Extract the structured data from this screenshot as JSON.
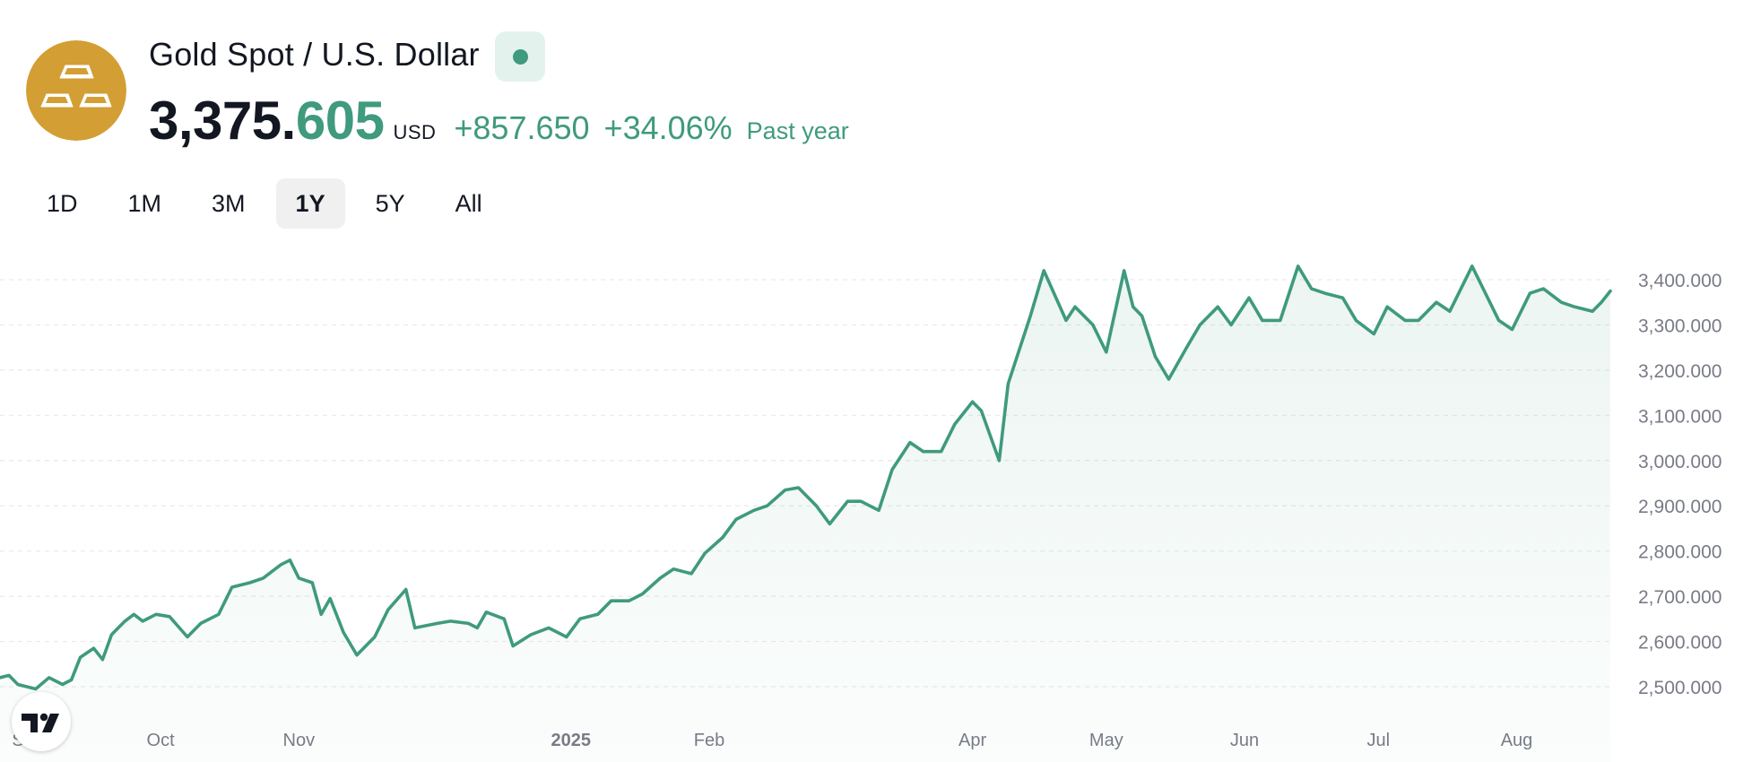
{
  "header": {
    "title": "Gold Spot / U.S. Dollar",
    "price_int": "3,375.",
    "price_frac": "605",
    "currency": "USD",
    "change": "+857.650",
    "change_pct": "+34.06%",
    "period": "Past year",
    "logo_icon": "gold-bars-icon",
    "status_icon": "market-open-dot-icon"
  },
  "range_tabs": [
    {
      "label": "1D",
      "active": false
    },
    {
      "label": "1M",
      "active": false
    },
    {
      "label": "3M",
      "active": false
    },
    {
      "label": "1Y",
      "active": true
    },
    {
      "label": "5Y",
      "active": false
    },
    {
      "label": "All",
      "active": false
    }
  ],
  "colors": {
    "line": "#3f9a7e",
    "logo": "#d39e33",
    "text": "#131722",
    "axis_text": "#787b86"
  },
  "badge": {
    "icon": "tradingview-logo-icon"
  },
  "chart_data": {
    "type": "area",
    "title": "",
    "xlabel": "",
    "ylabel": "",
    "ylim": [
      2480,
      3450
    ],
    "y_ticks": [
      "3,400.000",
      "3,300.000",
      "3,200.000",
      "3,100.000",
      "3,000.000",
      "2,900.000",
      "2,800.000",
      "2,700.000",
      "2,600.000",
      "2,500.000"
    ],
    "y_tick_values": [
      3400,
      3300,
      3200,
      3100,
      3000,
      2900,
      2800,
      2700,
      2600,
      2500
    ],
    "x_ticks": [
      {
        "label": "S",
        "date": "2024-08-26",
        "bold": false
      },
      {
        "label": "Oct",
        "date": "2024-10-01",
        "bold": false
      },
      {
        "label": "Nov",
        "date": "2024-11-01",
        "bold": false
      },
      {
        "label": "2025",
        "date": "2025-01-01",
        "bold": true
      },
      {
        "label": "Feb",
        "date": "2025-02-01",
        "bold": false
      },
      {
        "label": "Apr",
        "date": "2025-04-01",
        "bold": false
      },
      {
        "label": "May",
        "date": "2025-05-01",
        "bold": false
      },
      {
        "label": "Jun",
        "date": "2025-06-01",
        "bold": false
      },
      {
        "label": "Jul",
        "date": "2025-07-01",
        "bold": false
      },
      {
        "label": "Aug",
        "date": "2025-08-01",
        "bold": false
      }
    ],
    "x_range": [
      "2024-08-26",
      "2025-08-22"
    ],
    "grid": true,
    "legend": "none",
    "series": [
      {
        "x": [
          "2024-08-26",
          "2024-08-28",
          "2024-08-30",
          "2024-09-03",
          "2024-09-06",
          "2024-09-09",
          "2024-09-11",
          "2024-09-13",
          "2024-09-16",
          "2024-09-18",
          "2024-09-20",
          "2024-09-23",
          "2024-09-25",
          "2024-09-27",
          "2024-09-30",
          "2024-10-03",
          "2024-10-07",
          "2024-10-10",
          "2024-10-14",
          "2024-10-17",
          "2024-10-21",
          "2024-10-24",
          "2024-10-28",
          "2024-10-30",
          "2024-11-01",
          "2024-11-04",
          "2024-11-06",
          "2024-11-08",
          "2024-11-11",
          "2024-11-14",
          "2024-11-18",
          "2024-11-21",
          "2024-11-25",
          "2024-11-27",
          "2024-12-02",
          "2024-12-05",
          "2024-12-09",
          "2024-12-11",
          "2024-12-13",
          "2024-12-17",
          "2024-12-19",
          "2024-12-23",
          "2024-12-27",
          "2024-12-31",
          "2025-01-03",
          "2025-01-07",
          "2025-01-10",
          "2025-01-14",
          "2025-01-17",
          "2025-01-21",
          "2025-01-24",
          "2025-01-28",
          "2025-01-31",
          "2025-02-04",
          "2025-02-07",
          "2025-02-11",
          "2025-02-14",
          "2025-02-18",
          "2025-02-21",
          "2025-02-25",
          "2025-02-28",
          "2025-03-04",
          "2025-03-07",
          "2025-03-11",
          "2025-03-14",
          "2025-03-18",
          "2025-03-21",
          "2025-03-25",
          "2025-03-28",
          "2025-04-01",
          "2025-04-03",
          "2025-04-07",
          "2025-04-09",
          "2025-04-11",
          "2025-04-14",
          "2025-04-17",
          "2025-04-22",
          "2025-04-24",
          "2025-04-28",
          "2025-05-01",
          "2025-05-05",
          "2025-05-07",
          "2025-05-09",
          "2025-05-12",
          "2025-05-15",
          "2025-05-19",
          "2025-05-22",
          "2025-05-26",
          "2025-05-29",
          "2025-06-02",
          "2025-06-05",
          "2025-06-09",
          "2025-06-13",
          "2025-06-16",
          "2025-06-19",
          "2025-06-23",
          "2025-06-26",
          "2025-06-30",
          "2025-07-03",
          "2025-07-07",
          "2025-07-10",
          "2025-07-14",
          "2025-07-17",
          "2025-07-22",
          "2025-07-24",
          "2025-07-28",
          "2025-07-31",
          "2025-08-04",
          "2025-08-07",
          "2025-08-11",
          "2025-08-14",
          "2025-08-18",
          "2025-08-20",
          "2025-08-22"
        ],
        "values": [
          2520,
          2525,
          2505,
          2495,
          2520,
          2505,
          2515,
          2565,
          2585,
          2560,
          2615,
          2645,
          2660,
          2645,
          2660,
          2655,
          2610,
          2640,
          2660,
          2720,
          2730,
          2740,
          2770,
          2780,
          2740,
          2730,
          2660,
          2695,
          2620,
          2570,
          2610,
          2670,
          2715,
          2630,
          2640,
          2645,
          2640,
          2630,
          2665,
          2650,
          2590,
          2615,
          2630,
          2610,
          2650,
          2660,
          2690,
          2690,
          2705,
          2740,
          2760,
          2750,
          2795,
          2830,
          2870,
          2890,
          2900,
          2935,
          2940,
          2900,
          2860,
          2910,
          2910,
          2890,
          2980,
          3040,
          3020,
          3020,
          3080,
          3130,
          3110,
          3000,
          3170,
          3230,
          3320,
          3420,
          3310,
          3340,
          3300,
          3240,
          3420,
          3340,
          3320,
          3230,
          3180,
          3250,
          3300,
          3340,
          3300,
          3360,
          3310,
          3310,
          3430,
          3380,
          3370,
          3360,
          3310,
          3280,
          3340,
          3310,
          3310,
          3350,
          3330,
          3430,
          3390,
          3310,
          3290,
          3370,
          3380,
          3350,
          3340,
          3330,
          3350,
          3375
        ]
      }
    ]
  }
}
